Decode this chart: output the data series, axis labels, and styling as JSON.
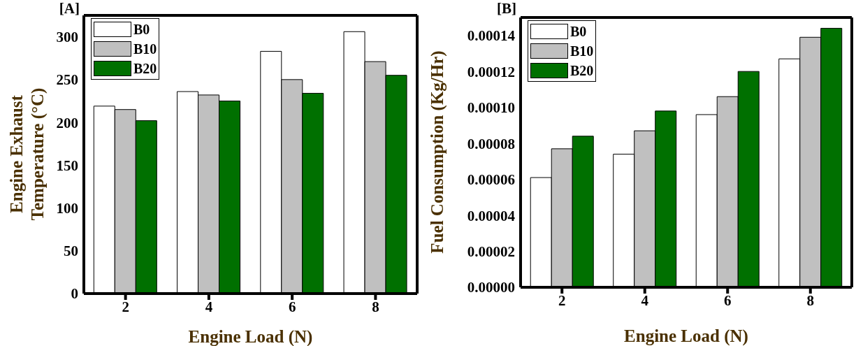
{
  "chart_data": [
    {
      "type": "bar",
      "title": "[A]",
      "xlabel": "Engine Load (N)",
      "ylabel": "Engine Exhaust Temperature (°C)",
      "categories": [
        "2",
        "4",
        "6",
        "8"
      ],
      "series": [
        {
          "name": "B0",
          "color": "#ffffff",
          "values": [
            219,
            236,
            283,
            306
          ]
        },
        {
          "name": "B10",
          "color": "#c0c0c0",
          "values": [
            215,
            232,
            250,
            271
          ]
        },
        {
          "name": "B20",
          "color": "#007000",
          "values": [
            202,
            225,
            234,
            255
          ]
        }
      ],
      "ylim": [
        0,
        325
      ],
      "yticks": [
        0,
        50,
        100,
        150,
        200,
        250,
        300
      ],
      "legend": "top left",
      "grid": false
    },
    {
      "type": "bar",
      "title": "[B]",
      "xlabel": "Engine Load (N)",
      "ylabel": "Fuel Consumption (Kg/Hr)",
      "categories": [
        "2",
        "4",
        "6",
        "8"
      ],
      "series": [
        {
          "name": "B0",
          "color": "#ffffff",
          "values": [
            6.1e-05,
            7.4e-05,
            9.6e-05,
            0.000127
          ]
        },
        {
          "name": "B10",
          "color": "#c0c0c0",
          "values": [
            7.7e-05,
            8.7e-05,
            0.000106,
            0.000139
          ]
        },
        {
          "name": "B20",
          "color": "#007000",
          "values": [
            8.4e-05,
            9.8e-05,
            0.00012,
            0.000144
          ]
        }
      ],
      "ylim": [
        0,
        0.00015
      ],
      "yticks": [
        {
          "value": 0,
          "label": "0.00000"
        },
        {
          "value": 2e-05,
          "label": "0.00002"
        },
        {
          "value": 4e-05,
          "label": "0.00004"
        },
        {
          "value": 6e-05,
          "label": "0.00006"
        },
        {
          "value": 8e-05,
          "label": "0.00008"
        },
        {
          "value": 0.0001,
          "label": "0.00010"
        },
        {
          "value": 0.00012,
          "label": "0.00012"
        },
        {
          "value": 0.00014,
          "label": "0.00014"
        }
      ],
      "legend": "top left",
      "grid": false
    }
  ]
}
